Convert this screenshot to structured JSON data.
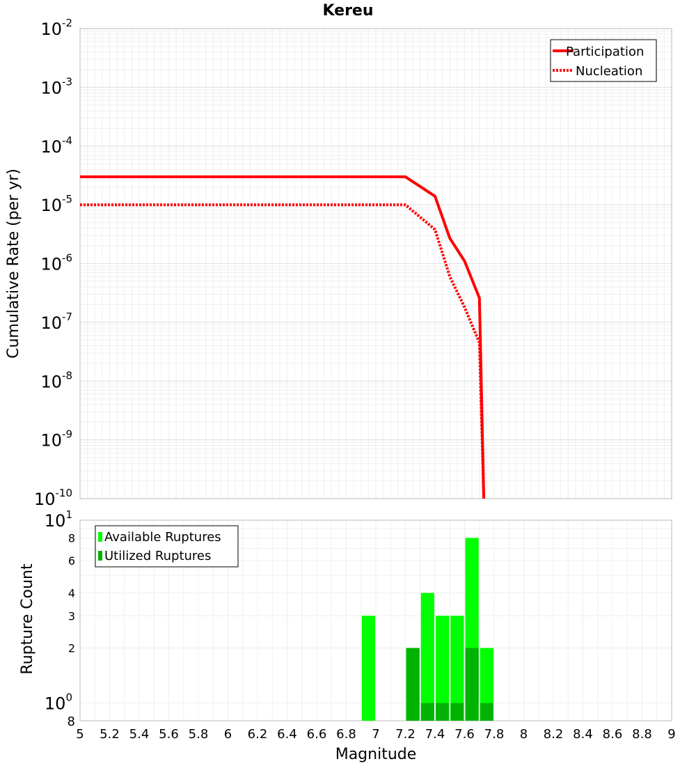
{
  "chart_data": [
    {
      "type": "line",
      "title": "Kereu",
      "xlabel": "",
      "ylabel": "Cumulative Rate (per yr)",
      "xlim": [
        5,
        9
      ],
      "ylim": [
        1e-10,
        0.01
      ],
      "yscale": "log",
      "grid": true,
      "legend_position": "top-right",
      "y_tick_labels": [
        {
          "base": "10",
          "exp": "-2"
        },
        {
          "base": "10",
          "exp": "-3"
        },
        {
          "base": "10",
          "exp": "-4"
        },
        {
          "base": "10",
          "exp": "-5"
        },
        {
          "base": "10",
          "exp": "-6"
        },
        {
          "base": "10",
          "exp": "-7"
        },
        {
          "base": "10",
          "exp": "-8"
        },
        {
          "base": "10",
          "exp": "-9"
        },
        {
          "base": "10",
          "exp": "-10"
        }
      ],
      "series": [
        {
          "name": "Participation",
          "color": "#ff0000",
          "style": "solid",
          "x": [
            5.0,
            7.2,
            7.4,
            7.5,
            7.6,
            7.7,
            7.73
          ],
          "y": [
            3e-05,
            3e-05,
            1.4e-05,
            2.7e-06,
            1.1e-06,
            2.6e-07,
            1e-10
          ]
        },
        {
          "name": "Nucleation",
          "color": "#ff0000",
          "style": "dotted",
          "x": [
            5.0,
            7.2,
            7.4,
            7.5,
            7.6,
            7.7,
            7.73
          ],
          "y": [
            1e-05,
            1e-05,
            3.8e-06,
            6e-07,
            1.8e-07,
            4.5e-08,
            1e-10
          ]
        }
      ]
    },
    {
      "type": "bar",
      "title": "",
      "xlabel": "Magnitude",
      "ylabel": "Rupture Count",
      "xlim": [
        5,
        9
      ],
      "ylim": [
        0.8,
        10
      ],
      "yscale": "log",
      "grid": true,
      "legend_position": "top-left",
      "bin_width": 0.1,
      "x_ticks": [
        "5",
        "5.2",
        "5.4",
        "5.6",
        "5.8",
        "6",
        "6.2",
        "6.4",
        "6.6",
        "6.8",
        "7",
        "7.2",
        "7.4",
        "7.6",
        "7.8",
        "8",
        "8.2",
        "8.4",
        "8.6",
        "8.8",
        "9"
      ],
      "y_tick_labels": [
        {
          "label": "8",
          "value": 8,
          "style": "small"
        },
        {
          "label": "6",
          "value": 6,
          "style": "small"
        },
        {
          "label": "4",
          "value": 4,
          "style": "small"
        },
        {
          "label": "3",
          "value": 3,
          "style": "small"
        },
        {
          "label": "2",
          "value": 2,
          "style": "small"
        }
      ],
      "y_power_labels": [
        {
          "base": "10",
          "exp": "1",
          "value": 10
        },
        {
          "base": "10",
          "exp": "0",
          "value": 1
        }
      ],
      "y_bottom_label": "8",
      "series": [
        {
          "name": "Available Ruptures",
          "color": "#00ff00",
          "x": [
            6.95,
            7.25,
            7.35,
            7.45,
            7.55,
            7.65,
            7.75
          ],
          "values": [
            3,
            2,
            4,
            3,
            3,
            8,
            2
          ]
        },
        {
          "name": "Utilized Ruptures",
          "color": "#00b300",
          "x": [
            7.25,
            7.35,
            7.45,
            7.55,
            7.65,
            7.75
          ],
          "values": [
            2,
            1,
            1,
            1,
            2,
            1
          ]
        }
      ]
    }
  ]
}
